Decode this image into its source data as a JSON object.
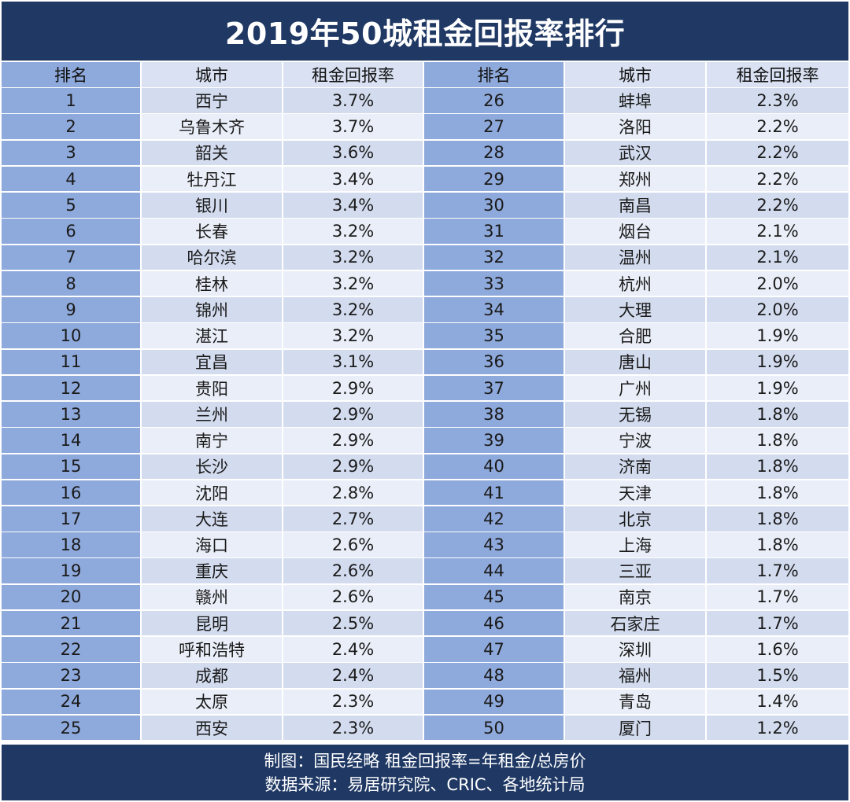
{
  "title": "2019年50城租金回报率排行",
  "headers": [
    "排名",
    "城市",
    "租金回报率",
    "排名",
    "城市",
    "租金回报率"
  ],
  "rows": [
    {
      "rank": "1",
      "city": "西宁",
      "yield": "3.7%"
    },
    {
      "rank": "2",
      "city": "乌鲁木齐",
      "yield": "3.7%"
    },
    {
      "rank": "3",
      "city": "韶关",
      "yield": "3.6%"
    },
    {
      "rank": "4",
      "city": "牡丹江",
      "yield": "3.4%"
    },
    {
      "rank": "5",
      "city": "银川",
      "yield": "3.4%"
    },
    {
      "rank": "6",
      "city": "长春",
      "yield": "3.2%"
    },
    {
      "rank": "7",
      "city": "哈尔滨",
      "yield": "3.2%"
    },
    {
      "rank": "8",
      "city": "桂林",
      "yield": "3.2%"
    },
    {
      "rank": "9",
      "city": "锦州",
      "yield": "3.2%"
    },
    {
      "rank": "10",
      "city": "湛江",
      "yield": "3.2%"
    },
    {
      "rank": "11",
      "city": "宜昌",
      "yield": "3.1%"
    },
    {
      "rank": "12",
      "city": "贵阳",
      "yield": "2.9%"
    },
    {
      "rank": "13",
      "city": "兰州",
      "yield": "2.9%"
    },
    {
      "rank": "14",
      "city": "南宁",
      "yield": "2.9%"
    },
    {
      "rank": "15",
      "city": "长沙",
      "yield": "2.9%"
    },
    {
      "rank": "16",
      "city": "沈阳",
      "yield": "2.8%"
    },
    {
      "rank": "17",
      "city": "大连",
      "yield": "2.7%"
    },
    {
      "rank": "18",
      "city": "海口",
      "yield": "2.6%"
    },
    {
      "rank": "19",
      "city": "重庆",
      "yield": "2.6%"
    },
    {
      "rank": "20",
      "city": "赣州",
      "yield": "2.6%"
    },
    {
      "rank": "21",
      "city": "昆明",
      "yield": "2.5%"
    },
    {
      "rank": "22",
      "city": "呼和浩特",
      "yield": "2.4%"
    },
    {
      "rank": "23",
      "city": "成都",
      "yield": "2.4%"
    },
    {
      "rank": "24",
      "city": "太原",
      "yield": "2.3%"
    },
    {
      "rank": "25",
      "city": "西安",
      "yield": "2.3%"
    },
    {
      "rank": "26",
      "city": "蚌埠",
      "yield": "2.3%"
    },
    {
      "rank": "27",
      "city": "洛阳",
      "yield": "2.2%"
    },
    {
      "rank": "28",
      "city": "武汉",
      "yield": "2.2%"
    },
    {
      "rank": "29",
      "city": "郑州",
      "yield": "2.2%"
    },
    {
      "rank": "30",
      "city": "南昌",
      "yield": "2.2%"
    },
    {
      "rank": "31",
      "city": "烟台",
      "yield": "2.1%"
    },
    {
      "rank": "32",
      "city": "温州",
      "yield": "2.1%"
    },
    {
      "rank": "33",
      "city": "杭州",
      "yield": "2.0%"
    },
    {
      "rank": "34",
      "city": "大理",
      "yield": "2.0%"
    },
    {
      "rank": "35",
      "city": "合肥",
      "yield": "1.9%"
    },
    {
      "rank": "36",
      "city": "唐山",
      "yield": "1.9%"
    },
    {
      "rank": "37",
      "city": "广州",
      "yield": "1.9%"
    },
    {
      "rank": "38",
      "city": "无锡",
      "yield": "1.8%"
    },
    {
      "rank": "39",
      "city": "宁波",
      "yield": "1.8%"
    },
    {
      "rank": "40",
      "city": "济南",
      "yield": "1.8%"
    },
    {
      "rank": "41",
      "city": "天津",
      "yield": "1.8%"
    },
    {
      "rank": "42",
      "city": "北京",
      "yield": "1.8%"
    },
    {
      "rank": "43",
      "city": "上海",
      "yield": "1.8%"
    },
    {
      "rank": "44",
      "city": "三亚",
      "yield": "1.7%"
    },
    {
      "rank": "45",
      "city": "南京",
      "yield": "1.7%"
    },
    {
      "rank": "46",
      "city": "石家庄",
      "yield": "1.7%"
    },
    {
      "rank": "47",
      "city": "深圳",
      "yield": "1.6%"
    },
    {
      "rank": "48",
      "city": "福州",
      "yield": "1.5%"
    },
    {
      "rank": "49",
      "city": "青岛",
      "yield": "1.4%"
    },
    {
      "rank": "50",
      "city": "厦门",
      "yield": "1.2%"
    }
  ],
  "footer": {
    "line1": "制图：国民经略  租金回报率=年租金/总房价",
    "line2": "数据来源：易居研究院、CRIC、各地统计局"
  },
  "colors": {
    "title_bg": "#1f3864",
    "rank_col": "#8ea9db",
    "row_dark": "#d3dcef",
    "row_light": "#e9eef8"
  }
}
